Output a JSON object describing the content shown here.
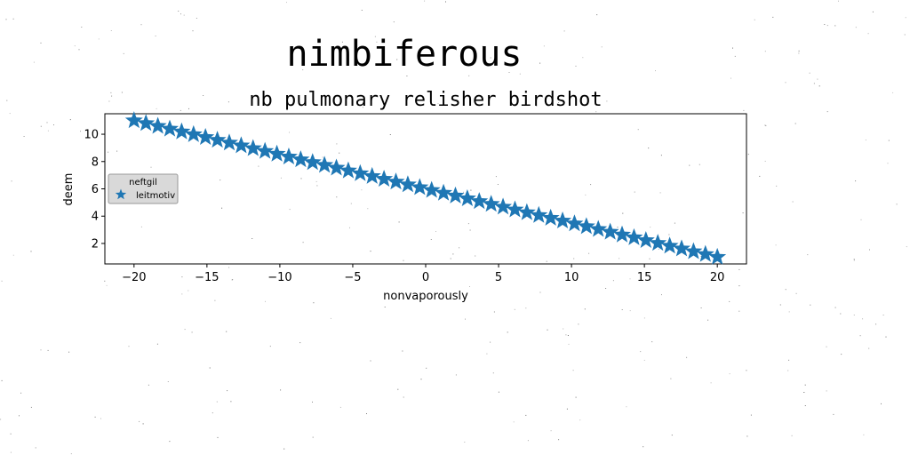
{
  "figure": {
    "suptitle": "nimbiferous"
  },
  "chart_data": {
    "type": "scatter",
    "title": "nb pulmonary relisher birdshot",
    "xlabel": "nonvaporously",
    "ylabel": "deem",
    "xlim": [
      -22,
      22
    ],
    "ylim": [
      0.5,
      11.5
    ],
    "xticks": [
      -20,
      -15,
      -10,
      -5,
      0,
      5,
      10,
      15,
      20
    ],
    "yticks": [
      2,
      4,
      6,
      8,
      10
    ],
    "grid": false,
    "marker": "star",
    "color": "#1f77b4",
    "legend": {
      "title": "neftgil",
      "position": "center-left",
      "entries": [
        "leitmotiv"
      ]
    },
    "series": [
      {
        "name": "leitmotiv",
        "x": [
          -20.0,
          -19.184,
          -18.367,
          -17.551,
          -16.735,
          -15.918,
          -15.102,
          -14.286,
          -13.469,
          -12.653,
          -11.837,
          -11.02,
          -10.204,
          -9.388,
          -8.571,
          -7.755,
          -6.939,
          -6.122,
          -5.306,
          -4.49,
          -3.673,
          -2.857,
          -2.041,
          -1.224,
          -0.408,
          0.408,
          1.224,
          2.041,
          2.857,
          3.673,
          4.49,
          5.306,
          6.122,
          6.939,
          7.755,
          8.571,
          9.388,
          10.204,
          11.02,
          11.837,
          12.653,
          13.469,
          14.286,
          15.102,
          15.918,
          16.735,
          17.551,
          18.367,
          19.184,
          20.0
        ],
        "y": [
          11.0,
          10.796,
          10.592,
          10.388,
          10.184,
          9.98,
          9.776,
          9.571,
          9.367,
          9.163,
          8.959,
          8.755,
          8.551,
          8.347,
          8.143,
          7.939,
          7.735,
          7.531,
          7.327,
          7.122,
          6.918,
          6.714,
          6.51,
          6.306,
          6.102,
          5.898,
          5.694,
          5.49,
          5.286,
          5.082,
          4.878,
          4.673,
          4.469,
          4.265,
          4.061,
          3.857,
          3.653,
          3.449,
          3.245,
          3.041,
          2.837,
          2.633,
          2.429,
          2.224,
          2.02,
          1.816,
          1.612,
          1.408,
          1.204,
          1.0
        ]
      }
    ]
  }
}
